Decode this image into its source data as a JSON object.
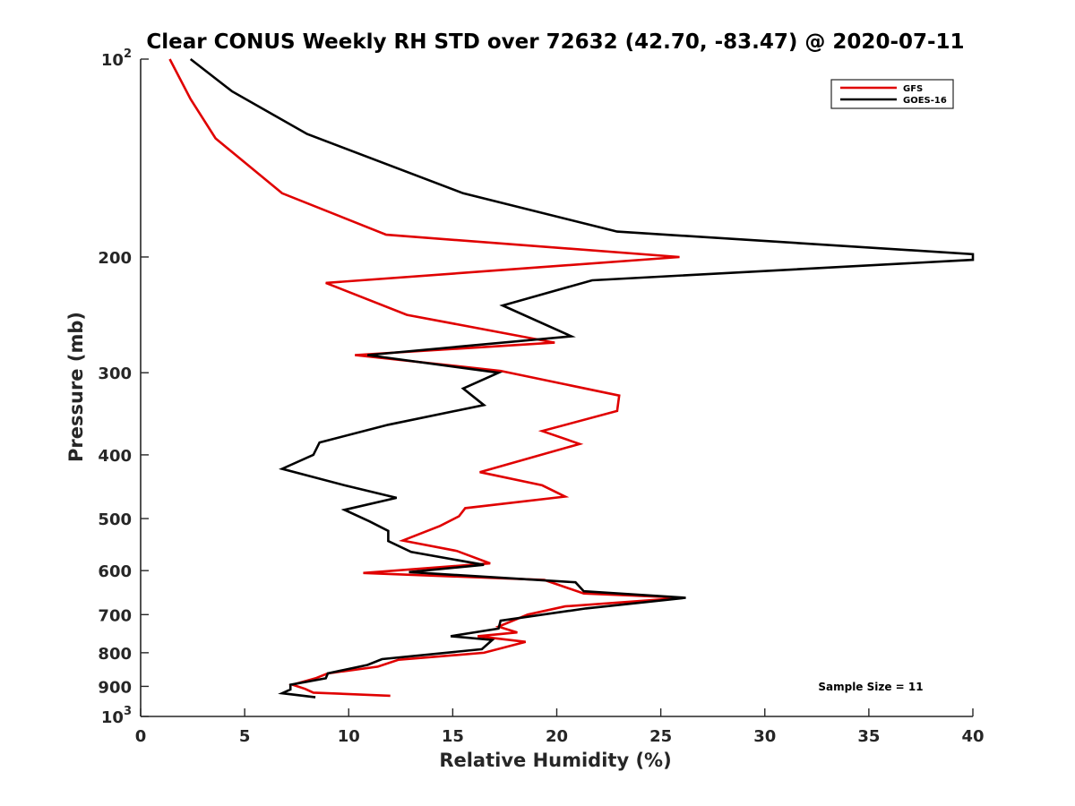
{
  "chart_data": {
    "type": "line",
    "title": "Clear CONUS Weekly RH STD over 72632 (42.70, -83.47) @ 2020-07-11",
    "xlabel": "Relative Humidity (%)",
    "ylabel": "Pressure (mb)",
    "xlim": [
      0,
      40
    ],
    "ylim": [
      100,
      1000
    ],
    "y_scale": "log",
    "y_reversed": true,
    "grid": false,
    "legend_position": "top-right",
    "x_ticks": [
      "0",
      "5",
      "10",
      "15",
      "20",
      "25",
      "30",
      "35",
      "40"
    ],
    "y_ticks": [
      {
        "value": 100,
        "base": "10",
        "exp": "2"
      },
      {
        "value": 200,
        "base": "200",
        "exp": ""
      },
      {
        "value": 300,
        "base": "300",
        "exp": ""
      },
      {
        "value": 400,
        "base": "400",
        "exp": ""
      },
      {
        "value": 500,
        "base": "500",
        "exp": ""
      },
      {
        "value": 600,
        "base": "600",
        "exp": ""
      },
      {
        "value": 700,
        "base": "700",
        "exp": ""
      },
      {
        "value": 800,
        "base": "800",
        "exp": ""
      },
      {
        "value": 900,
        "base": "900",
        "exp": ""
      },
      {
        "value": 1000,
        "base": "10",
        "exp": "3"
      }
    ],
    "series": [
      {
        "name": "GFS",
        "color": "#e00000",
        "x": [
          1.4,
          2.4,
          3.6,
          6.8,
          11.8,
          25.9,
          8.9,
          12.8,
          19.9,
          10.3,
          17.3,
          23.0,
          22.9,
          19.3,
          21.1,
          16.3,
          19.3,
          20.4,
          15.6,
          15.3,
          14.4,
          12.6,
          15.2,
          16.8,
          10.7,
          19.4,
          21.3,
          26.1,
          20.4,
          18.6,
          17.2,
          18.1,
          16.2,
          18.5,
          16.5,
          12.4,
          11.4,
          9.0,
          8.4,
          7.3,
          7.9,
          8.3,
          12.0
        ],
        "y": [
          100,
          115,
          132,
          160,
          185,
          200,
          219,
          245,
          270,
          282,
          298,
          325,
          343,
          368,
          385,
          425,
          445,
          463,
          482,
          496,
          513,
          540,
          560,
          585,
          605,
          620,
          650,
          660,
          680,
          700,
          730,
          745,
          755,
          770,
          800,
          820,
          840,
          860,
          875,
          895,
          908,
          920,
          930
        ]
      },
      {
        "name": "GOES-16",
        "color": "#000000",
        "x": [
          2.4,
          4.4,
          8.0,
          15.5,
          22.9,
          40.0,
          40.0,
          21.7,
          17.4,
          20.7,
          10.9,
          17.2,
          15.5,
          16.5,
          11.9,
          8.6,
          8.3,
          6.8,
          9.8,
          12.3,
          9.8,
          11.0,
          11.9,
          11.9,
          13.0,
          16.5,
          12.9,
          20.9,
          21.3,
          26.2,
          21.4,
          17.3,
          17.2,
          14.9,
          16.9,
          16.4,
          11.6,
          10.9,
          9.0,
          8.9,
          7.2,
          7.2,
          6.8,
          8.4
        ],
        "y": [
          100,
          112,
          130,
          160,
          183,
          198,
          202,
          217,
          237,
          264,
          282,
          300,
          317,
          336,
          360,
          383,
          400,
          420,
          445,
          465,
          485,
          505,
          522,
          541,
          562,
          588,
          603,
          625,
          645,
          660,
          685,
          715,
          735,
          755,
          765,
          790,
          818,
          835,
          860,
          875,
          895,
          910,
          922,
          935
        ]
      }
    ],
    "annotation": "Sample Size = 11"
  }
}
